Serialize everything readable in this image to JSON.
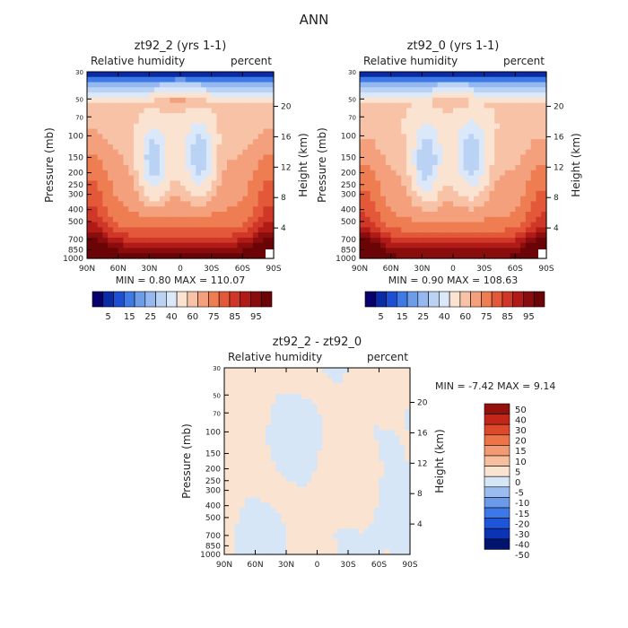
{
  "title": "ANN",
  "colors": {
    "main_scale": [
      "#08006b",
      "#0a2aa6",
      "#1e4fd3",
      "#3d7ae6",
      "#6d9ce9",
      "#94b8ef",
      "#bad3f4",
      "#dbe8f9",
      "#fbe3d2",
      "#f8c2a6",
      "#f4a07c",
      "#ee7d52",
      "#e4583a",
      "#cf3726",
      "#b01b17",
      "#8a0d0e",
      "#6a0406"
    ],
    "diff_scale": [
      "#00146e",
      "#0a34b4",
      "#1e55d9",
      "#3d78e8",
      "#6a9ae9",
      "#9bbcef",
      "#d6e6f7",
      "#fbe3d2",
      "#f8bf9e",
      "#f49a72",
      "#ec7448",
      "#dd4a2b",
      "#c22619",
      "#94100c"
    ]
  },
  "chart_data": [
    {
      "type": "heatmap",
      "title": "zt92_2 (yrs 1-1)",
      "field_label": "Relative humidity",
      "units": "percent",
      "xlabel": "",
      "ylabel": "Pressure (mb)",
      "ylabel_right": "Height (km)",
      "x_ticks": [
        "90N",
        "60N",
        "30N",
        "0",
        "30S",
        "60S",
        "90S"
      ],
      "y_ticks": [
        "30",
        "50",
        "70",
        "100",
        "150",
        "200",
        "250",
        "300",
        "400",
        "500",
        "700",
        "850",
        "1000"
      ],
      "y_ticks_right": [
        "20",
        "16",
        "12",
        "8",
        "4"
      ],
      "stats": "MIN =    0.80   MAX =  110.07",
      "min": 0.8,
      "max": 110.07,
      "colorbar_labels": [
        "5",
        "15",
        "25",
        "40",
        "60",
        "75",
        "85",
        "95"
      ]
    },
    {
      "type": "heatmap",
      "title": "zt92_0 (yrs 1-1)",
      "field_label": "Relative humidity",
      "units": "percent",
      "xlabel": "",
      "ylabel": "Pressure (mb)",
      "ylabel_right": "Height (km)",
      "x_ticks": [
        "90N",
        "60N",
        "30N",
        "0",
        "30S",
        "60S",
        "90S"
      ],
      "y_ticks": [
        "30",
        "50",
        "70",
        "100",
        "150",
        "200",
        "250",
        "300",
        "400",
        "500",
        "700",
        "850",
        "1000"
      ],
      "y_ticks_right": [
        "20",
        "16",
        "12",
        "8",
        "4"
      ],
      "stats": "MIN =    0.90   MAX =  108.63",
      "min": 0.9,
      "max": 108.63,
      "colorbar_labels": [
        "5",
        "15",
        "25",
        "40",
        "60",
        "75",
        "85",
        "95"
      ]
    },
    {
      "type": "heatmap",
      "title": "zt92_2 - zt92_0",
      "field_label": "Relative humidity",
      "units": "percent",
      "xlabel": "",
      "ylabel": "Pressure (mb)",
      "ylabel_right": "Height (km)",
      "x_ticks": [
        "90N",
        "60N",
        "30N",
        "0",
        "30S",
        "60S",
        "90S"
      ],
      "y_ticks": [
        "30",
        "50",
        "70",
        "100",
        "150",
        "200",
        "250",
        "300",
        "400",
        "500",
        "700",
        "850",
        "1000"
      ],
      "y_ticks_right": [
        "20",
        "16",
        "12",
        "8",
        "4"
      ],
      "stats": "MIN =   -7.42   MAX =    9.14",
      "min": -7.42,
      "max": 9.14,
      "colorbar_labels": [
        "50",
        "40",
        "30",
        "20",
        "15",
        "10",
        "5",
        "0",
        "-5",
        "-10",
        "-15",
        "-20",
        "-30",
        "-40",
        "-50"
      ]
    }
  ]
}
